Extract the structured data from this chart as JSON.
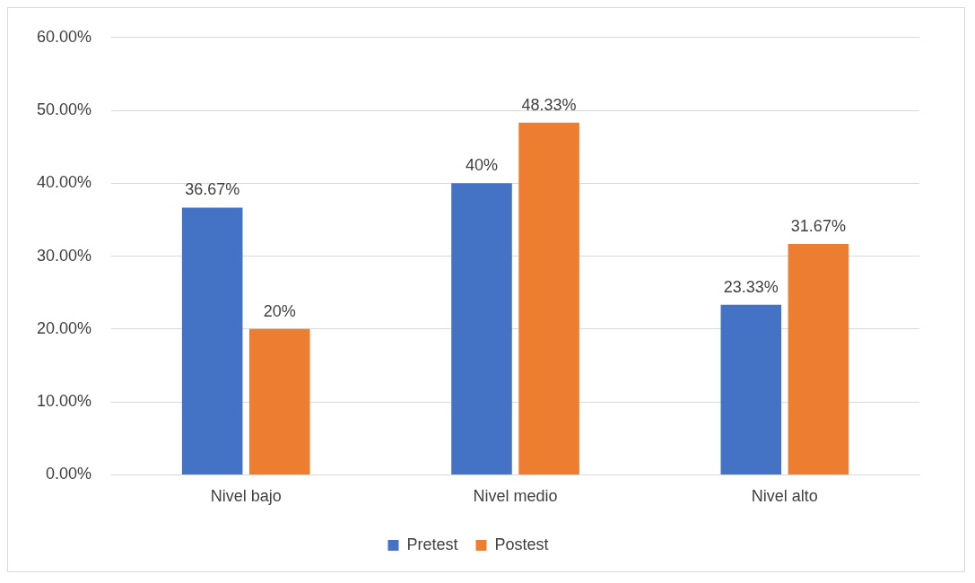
{
  "chart_data": {
    "type": "bar",
    "categories": [
      "Nivel bajo",
      "Nivel medio",
      "Nivel alto"
    ],
    "series": [
      {
        "name": "Pretest",
        "color": "#4472c4",
        "values": [
          36.67,
          40,
          23.33
        ],
        "value_labels": [
          "36.67%",
          "40%",
          "23.33%"
        ]
      },
      {
        "name": "Postest",
        "color": "#ed7d31",
        "values": [
          20,
          48.33,
          31.67
        ],
        "value_labels": [
          "20%",
          "48.33%",
          "31.67%"
        ]
      }
    ],
    "ylim": [
      0,
      60
    ],
    "yticks": [
      {
        "value": 0,
        "label": "0.00%"
      },
      {
        "value": 10,
        "label": "10.00%"
      },
      {
        "value": 20,
        "label": "20.00%"
      },
      {
        "value": 30,
        "label": "30.00%"
      },
      {
        "value": 40,
        "label": "40.00%"
      },
      {
        "value": 50,
        "label": "50.00%"
      },
      {
        "value": 60,
        "label": "60.00%"
      }
    ],
    "grid": "y",
    "legend": "bottom"
  }
}
